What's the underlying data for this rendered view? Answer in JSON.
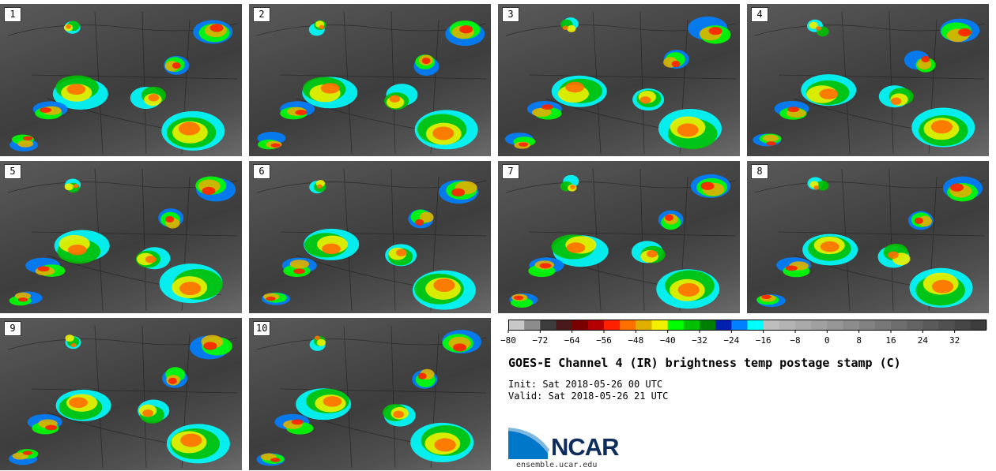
{
  "chart_data": {
    "type": "heatmap",
    "title": "GOES-E Channel 4 (IR) brightness temp postage stamp (C)",
    "init_label": "Init:",
    "init_time": "Sat 2018-05-26 00 UTC",
    "valid_label": "Valid:",
    "valid_time": "Sat 2018-05-26 21 UTC",
    "members": [
      "1",
      "2",
      "3",
      "4",
      "5",
      "6",
      "7",
      "8",
      "9",
      "10"
    ],
    "colorbar": {
      "min": -80,
      "max": 40,
      "bin_width": 4,
      "ticks": [
        "-80",
        "-72",
        "-64",
        "-56",
        "-48",
        "-40",
        "-32",
        "-24",
        "-16",
        "-8",
        "0",
        "8",
        "16",
        "24",
        "32"
      ],
      "colors": [
        "#c8c8c8",
        "#8c8c8c",
        "#3c3c3c",
        "#4a1a1a",
        "#7a0000",
        "#b40000",
        "#ff2000",
        "#ff7000",
        "#e0b000",
        "#f0f000",
        "#00ff00",
        "#00c000",
        "#008000",
        "#0020b0",
        "#0080ff",
        "#00ffff",
        "#bebebe",
        "#b4b4b4",
        "#aaaaaa",
        "#a0a0a0",
        "#969696",
        "#8c8c8c",
        "#828282",
        "#787878",
        "#6e6e6e",
        "#646464",
        "#5a5a5a",
        "#505050",
        "#464646",
        "#3c3c3c"
      ]
    }
  },
  "logo": {
    "text": "NCAR",
    "website": "ensemble.ucar.edu"
  }
}
